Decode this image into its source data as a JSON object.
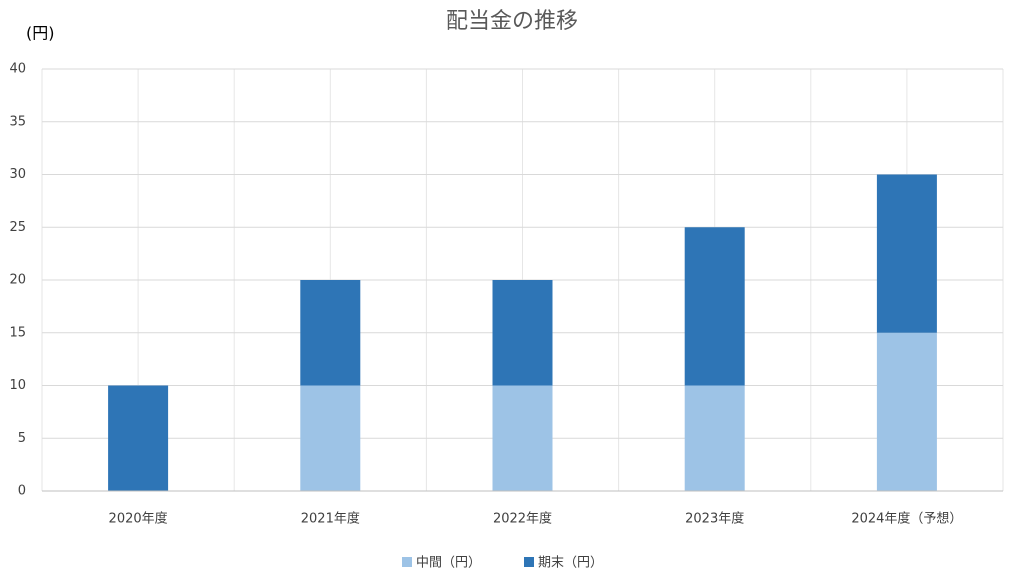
{
  "chart_data": {
    "type": "stacked-bar",
    "title": "配当金の推移",
    "y_label": "(円)",
    "categories": [
      "2020年度",
      "2021年度",
      "2022年度",
      "2023年度",
      "2024年度（予想）"
    ],
    "series": [
      {
        "name": "中間（円）",
        "color": "#9dc3e6",
        "values": [
          0,
          10,
          10,
          10,
          15
        ]
      },
      {
        "name": "期末（円）",
        "color": "#2e75b6",
        "values": [
          10,
          10,
          10,
          15,
          15
        ]
      }
    ],
    "ylim": [
      0,
      40
    ],
    "yticks": [
      0,
      5,
      10,
      15,
      20,
      25,
      30,
      35,
      40
    ],
    "grid": true,
    "legend": "bottom"
  }
}
